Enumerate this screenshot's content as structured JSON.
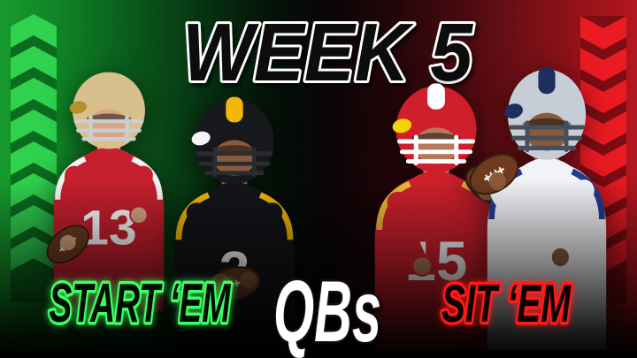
{
  "title": {
    "text": "WEEK 5"
  },
  "footer": {
    "left_label": "START ‘EM",
    "center_label": "QBs",
    "right_label": "SIT ‘EM"
  },
  "theme": {
    "title_fill": "#0a100b",
    "title_stroke": "#ffffff",
    "start_fill": "#060b06",
    "green_glow": "#3dff63",
    "sit_fill": "#070404",
    "red_glow": "#ff1a17",
    "qbs_fill": "#ffffff",
    "qbs_stroke": "#16110d",
    "bg_green": "#169a2d",
    "bg_red": "#a8141c"
  },
  "decor": {
    "left_chevrons": {
      "meaning": "start-up-arrows",
      "direction": "up",
      "count": 8,
      "bright": "#2fd14f",
      "dark": "#0b6c1e"
    },
    "right_chevrons": {
      "meaning": "sit-down-arrows",
      "direction": "down",
      "count": 8,
      "bright": "#ea1b22",
      "dark": "#7c0d12"
    }
  },
  "players": [
    {
      "id": "p1",
      "team": "49ers",
      "jersey_number": "13",
      "pose": "low-left",
      "colors": {
        "helmet": "#d8c08c",
        "stripe": "",
        "facemask": "#c9ced2",
        "jersey": "#c6202e",
        "trim": "#f5f5f5",
        "number": "#ffffff",
        "skin": "#d9a583",
        "badge": "#b3912f"
      }
    },
    {
      "id": "p2",
      "team": "steelers",
      "jersey_number": "2",
      "pose": "center",
      "colors": {
        "helmet": "#17181c",
        "stripe": "#f2b705",
        "facemask": "#2a2c30",
        "jersey": "#141519",
        "trim": "#f2b705",
        "number": "#ffffff",
        "skin": "#8a5a3b",
        "badge": "#f5f5f5"
      }
    },
    {
      "id": "p3",
      "team": "chiefs",
      "jersey_number": "15",
      "pose": "high-right",
      "colors": {
        "helmet": "#cf1f2c",
        "stripe": "#ffffff",
        "facemask": "#ffffff",
        "jersey": "#cf1f2c",
        "trim": "#f0b93a",
        "number": "#ffffff",
        "skin": "#b5795a",
        "badge": "#f2d200"
      }
    },
    {
      "id": "p4",
      "team": "cowboys",
      "jersey_number": "",
      "pose": "high-left",
      "colors": {
        "helmet": "#c7cdd6",
        "stripe": "#1c2f5e",
        "facemask": "#454e5c",
        "jersey": "#f2f3f6",
        "trim": "#223a8f",
        "number": "#1c2f5e",
        "skin": "#8a5a3b",
        "badge": "#1c2f5e"
      }
    }
  ]
}
